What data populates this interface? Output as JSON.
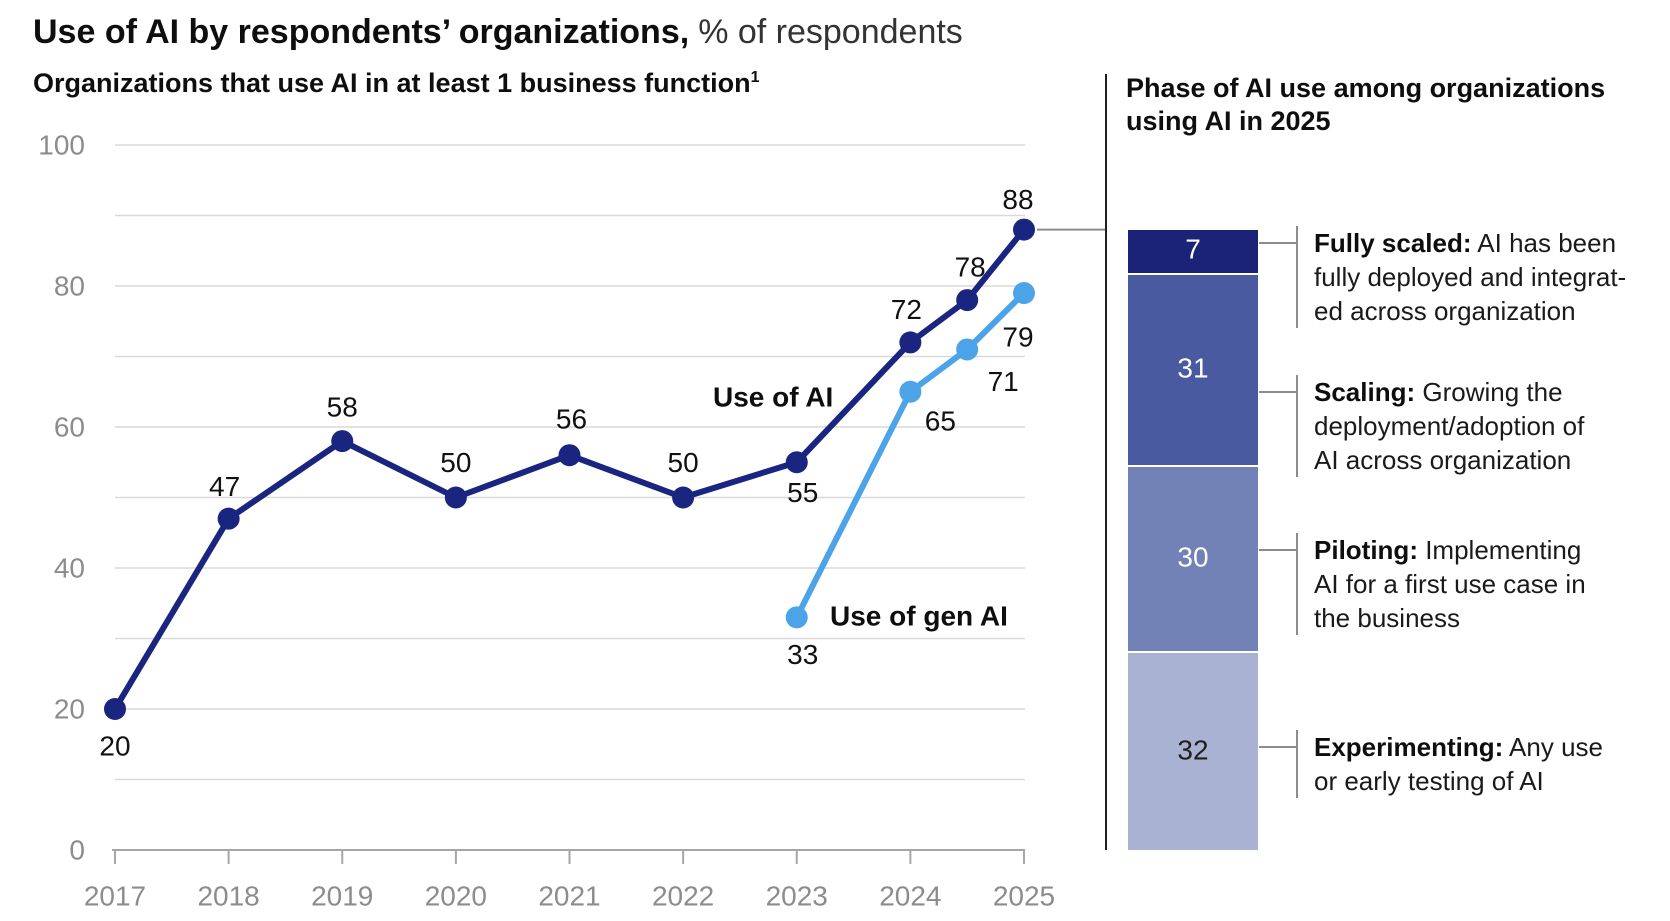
{
  "header": {
    "title_bold": "Use of AI by respondents’ organizations,",
    "title_regular": "% of respondents"
  },
  "left_chart": {
    "subtitle": "Organizations that use AI in at least 1 business function",
    "subtitle_superscript": "1"
  },
  "right_panel": {
    "heading_lines": [
      "Phase of AI use among organizations",
      "using AI in 2025"
    ],
    "definitions": [
      {
        "term": "Fully scaled:",
        "lines": [
          "AI has been",
          "fully deployed and integrat-",
          "ed across organization"
        ]
      },
      {
        "term": "Scaling:",
        "lines": [
          "Growing the",
          "deployment/adoption of",
          "AI across organization"
        ]
      },
      {
        "term": "Piloting:",
        "lines": [
          "Implementing",
          "AI for a first use case in",
          "the business"
        ]
      },
      {
        "term": "Experimenting:",
        "lines": [
          "Any use",
          "or early testing of AI"
        ]
      }
    ]
  },
  "chart_data": [
    {
      "type": "line",
      "title": "Organizations that use AI in at least 1 business function",
      "unit": "% of respondents",
      "x_ticks": [
        2017,
        2018,
        2019,
        2020,
        2021,
        2022,
        2023,
        2024,
        2025
      ],
      "x_tick_labels": [
        "2017",
        "2018",
        "2019",
        "2020",
        "2021",
        "2022",
        "2023",
        "2024",
        "2025"
      ],
      "y_ticks": [
        0,
        20,
        40,
        60,
        80,
        100
      ],
      "ylim": [
        0,
        100
      ],
      "grid_step": 10,
      "legend_position": "inline-labels",
      "series": [
        {
          "name": "Use of AI",
          "color": "#1a2580",
          "points": [
            [
              2017,
              20
            ],
            [
              2018,
              47
            ],
            [
              2019,
              58
            ],
            [
              2020,
              50
            ],
            [
              2021,
              56
            ],
            [
              2022,
              50
            ],
            [
              2023,
              55
            ],
            [
              2024,
              72
            ],
            [
              2024.5,
              78
            ],
            [
              2025,
              88
            ]
          ]
        },
        {
          "name": "Use of gen AI",
          "color": "#4da3e8",
          "points": [
            [
              2023,
              33
            ],
            [
              2024,
              65
            ],
            [
              2024.5,
              71
            ],
            [
              2025,
              79
            ]
          ]
        }
      ]
    },
    {
      "type": "bar",
      "subtype": "stacked-single-column",
      "title": "Phase of AI use among organizations using AI in 2025",
      "total": 100,
      "segments": [
        {
          "label": "Fully scaled",
          "value": 7,
          "color": "#1a2378",
          "value_text_color": "#ffffff"
        },
        {
          "label": "Scaling",
          "value": 31,
          "color": "#4a5aa0",
          "value_text_color": "#ffffff"
        },
        {
          "label": "Piloting",
          "value": 30,
          "color": "#7382b6",
          "value_text_color": "#ffffff"
        },
        {
          "label": "Experimenting",
          "value": 32,
          "color": "#a9b2d3",
          "value_text_color": "#1f1f1f"
        }
      ]
    }
  ],
  "colors": {
    "grid": "#d9d9d9",
    "axis": "#a6a6a6",
    "tick_label": "#8c8c8c",
    "data_label": "#111111",
    "series_label": "#0e0e0e",
    "divider": "#1f1f1f",
    "connector": "#8c8c8c"
  }
}
